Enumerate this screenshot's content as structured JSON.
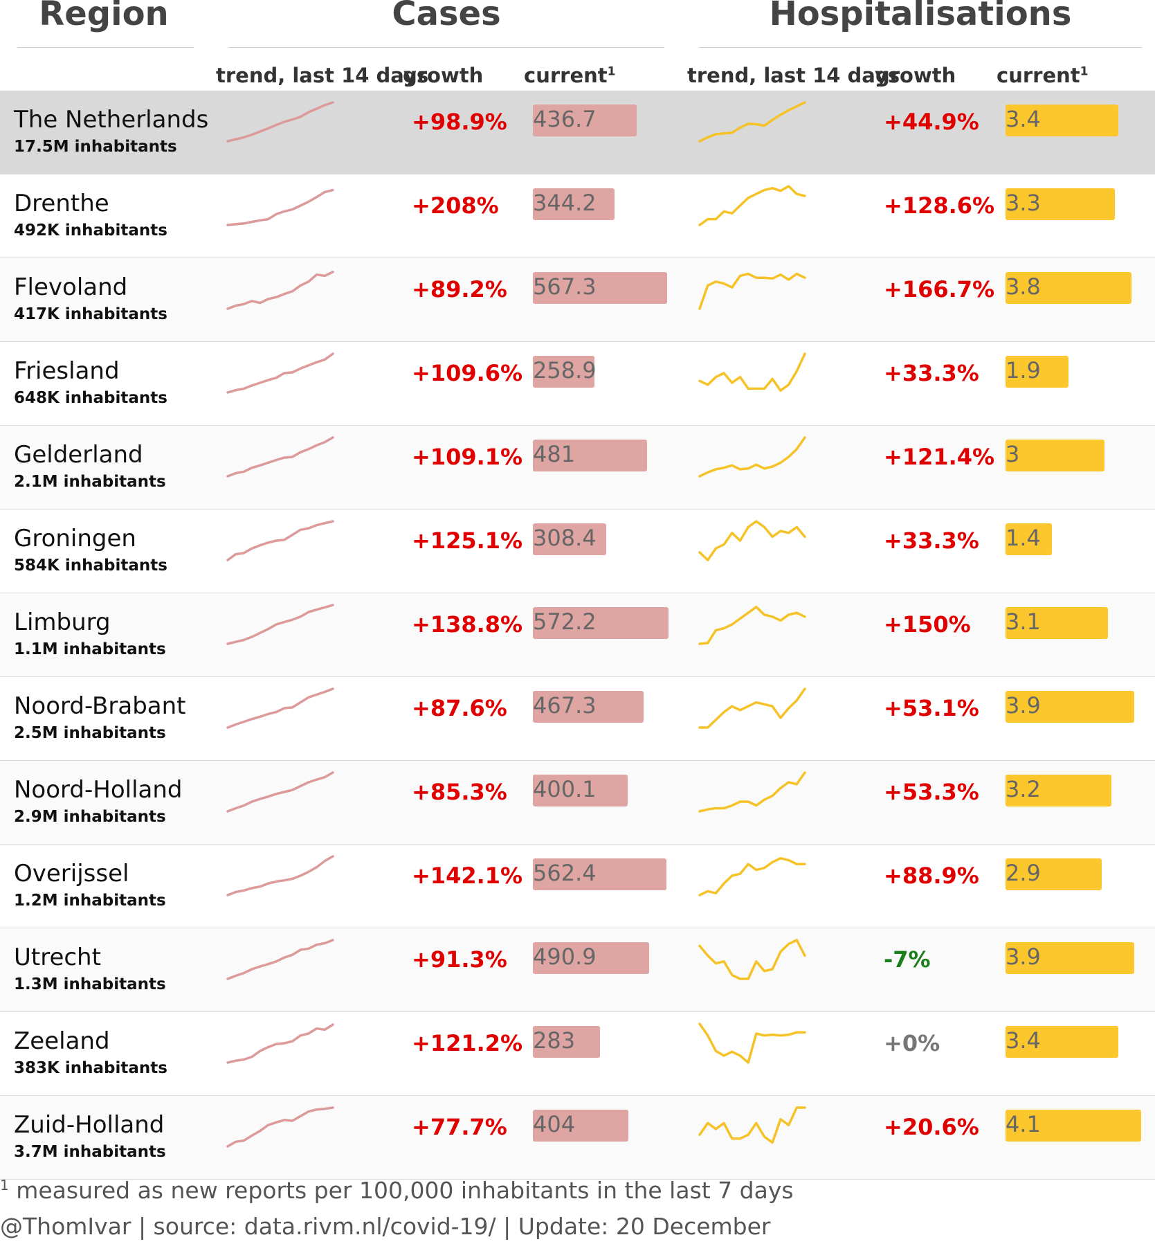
{
  "headers": {
    "region": "Region",
    "cases": "Cases",
    "hospitalisations": "Hospitalisations",
    "trend": "trend, last 14 days",
    "growth": "growth",
    "current": "current",
    "current_sup": "1"
  },
  "colors": {
    "cases_line": "#dc9a9a",
    "cases_bar": "#dea5a3",
    "hosp_line": "#f5c227",
    "hosp_bar": "#fcc72d",
    "positive": "#e00000",
    "negative": "#1a7f1a",
    "neutral": "#777777"
  },
  "chart_data": {
    "type": "table",
    "max_cases": 572.2,
    "max_hosp": 4.1,
    "rows": [
      {
        "name": "The Netherlands",
        "population": "17.5M inhabitants",
        "cases_growth": "+98.9%",
        "cases_current": 436.7,
        "cases_current_label": "436.7",
        "hosp_growth": "+44.9%",
        "hosp_current": 3.4,
        "hosp_current_label": "3.4",
        "growth_sign": "pos",
        "cases_trend": [
          0,
          5,
          10,
          17,
          25,
          33,
          42,
          50,
          56,
          63,
          75,
          84,
          93,
          100
        ],
        "hosp_trend": [
          0,
          10,
          18,
          20,
          22,
          35,
          45,
          44,
          40,
          55,
          68,
          80,
          90,
          100
        ]
      },
      {
        "name": "Drenthe",
        "population": "492K inhabitants",
        "cases_growth": "+208%",
        "cases_current": 344.2,
        "cases_current_label": "344.2",
        "hosp_growth": "+128.6%",
        "hosp_current": 3.3,
        "hosp_current_label": "3.3",
        "growth_sign": "pos",
        "cases_trend": [
          0,
          2,
          4,
          8,
          12,
          15,
          28,
          35,
          40,
          50,
          60,
          72,
          85,
          90
        ],
        "hosp_trend": [
          0,
          15,
          15,
          35,
          30,
          50,
          70,
          80,
          90,
          95,
          88,
          100,
          80,
          75
        ]
      },
      {
        "name": "Flevoland",
        "population": "417K inhabitants",
        "cases_growth": "+89.2%",
        "cases_current": 567.3,
        "cases_current_label": "567.3",
        "hosp_growth": "+166.7%",
        "hosp_current": 3.8,
        "hosp_current_label": "3.8",
        "growth_sign": "pos",
        "cases_trend": [
          0,
          8,
          12,
          20,
          15,
          25,
          30,
          38,
          45,
          60,
          70,
          88,
          85,
          95
        ],
        "hosp_trend": [
          0,
          60,
          70,
          65,
          55,
          85,
          90,
          80,
          80,
          78,
          88,
          75,
          90,
          80
        ]
      },
      {
        "name": "Friesland",
        "population": "648K inhabitants",
        "cases_growth": "+109.6%",
        "cases_current": 258.9,
        "cases_current_label": "258.9",
        "hosp_growth": "+33.3%",
        "hosp_current": 1.9,
        "hosp_current_label": "1.9",
        "growth_sign": "pos",
        "cases_trend": [
          0,
          6,
          10,
          18,
          25,
          32,
          38,
          50,
          52,
          62,
          70,
          78,
          85,
          100
        ],
        "hosp_trend": [
          30,
          20,
          40,
          50,
          25,
          40,
          10,
          10,
          10,
          35,
          5,
          20,
          55,
          100
        ]
      },
      {
        "name": "Gelderland",
        "population": "2.1M inhabitants",
        "cases_growth": "+109.1%",
        "cases_current": 481,
        "cases_current_label": "481",
        "hosp_growth": "+121.4%",
        "hosp_current": 3,
        "hosp_current_label": "3",
        "growth_sign": "pos",
        "cases_trend": [
          0,
          8,
          12,
          22,
          28,
          35,
          42,
          48,
          50,
          62,
          70,
          80,
          88,
          100
        ],
        "hosp_trend": [
          0,
          10,
          18,
          22,
          28,
          18,
          20,
          30,
          20,
          25,
          35,
          50,
          70,
          100
        ]
      },
      {
        "name": "Groningen",
        "population": "584K inhabitants",
        "cases_growth": "+125.1%",
        "cases_current": 308.4,
        "cases_current_label": "308.4",
        "hosp_growth": "+33.3%",
        "hosp_current": 1.4,
        "hosp_current_label": "1.4",
        "growth_sign": "pos",
        "cases_trend": [
          0,
          15,
          18,
          30,
          38,
          45,
          50,
          52,
          65,
          78,
          82,
          90,
          95,
          100
        ],
        "hosp_trend": [
          20,
          0,
          30,
          40,
          70,
          50,
          85,
          100,
          85,
          60,
          75,
          70,
          85,
          60
        ]
      },
      {
        "name": "Limburg",
        "population": "1.1M inhabitants",
        "cases_growth": "+138.8%",
        "cases_current": 572.2,
        "cases_current_label": "572.2",
        "hosp_growth": "+150%",
        "hosp_current": 3.1,
        "hosp_current_label": "3.1",
        "growth_sign": "pos",
        "cases_trend": [
          0,
          5,
          10,
          18,
          28,
          38,
          50,
          56,
          62,
          70,
          82,
          88,
          94,
          100
        ],
        "hosp_trend": [
          0,
          2,
          35,
          40,
          50,
          65,
          80,
          95,
          75,
          70,
          60,
          75,
          80,
          70
        ]
      },
      {
        "name": "Noord-Brabant",
        "population": "2.5M inhabitants",
        "cases_growth": "+87.6%",
        "cases_current": 467.3,
        "cases_current_label": "467.3",
        "hosp_growth": "+53.1%",
        "hosp_current": 3.9,
        "hosp_current_label": "3.9",
        "growth_sign": "pos",
        "cases_trend": [
          0,
          8,
          15,
          22,
          28,
          35,
          40,
          50,
          52,
          65,
          78,
          85,
          92,
          100
        ],
        "hosp_trend": [
          0,
          0,
          20,
          40,
          55,
          45,
          55,
          65,
          60,
          55,
          25,
          50,
          70,
          100
        ]
      },
      {
        "name": "Noord-Holland",
        "population": "2.9M inhabitants",
        "cases_growth": "+85.3%",
        "cases_current": 400.1,
        "cases_current_label": "400.1",
        "hosp_growth": "+53.3%",
        "hosp_current": 3.2,
        "hosp_current_label": "3.2",
        "growth_sign": "pos",
        "cases_trend": [
          0,
          8,
          15,
          25,
          32,
          38,
          45,
          50,
          55,
          65,
          75,
          82,
          88,
          100
        ],
        "hosp_trend": [
          0,
          5,
          8,
          8,
          15,
          25,
          25,
          15,
          30,
          40,
          60,
          75,
          70,
          100
        ]
      },
      {
        "name": "Overijssel",
        "population": "1.2M inhabitants",
        "cases_growth": "+142.1%",
        "cases_current": 562.4,
        "cases_current_label": "562.4",
        "hosp_growth": "+88.9%",
        "hosp_current": 2.9,
        "hosp_current_label": "2.9",
        "growth_sign": "pos",
        "cases_trend": [
          0,
          8,
          12,
          18,
          22,
          30,
          35,
          38,
          42,
          50,
          60,
          72,
          88,
          100
        ],
        "hosp_trend": [
          0,
          10,
          5,
          30,
          50,
          55,
          80,
          65,
          70,
          85,
          95,
          90,
          80,
          80
        ]
      },
      {
        "name": "Utrecht",
        "population": "1.3M inhabitants",
        "cases_growth": "+91.3%",
        "cases_current": 490.9,
        "cases_current_label": "490.9",
        "hosp_growth": "-7%",
        "hosp_current": 3.9,
        "hosp_current_label": "3.9",
        "growth_sign": "neg",
        "cases_trend": [
          0,
          8,
          15,
          25,
          32,
          38,
          45,
          55,
          62,
          75,
          78,
          88,
          92,
          100
        ],
        "hosp_trend": [
          85,
          60,
          40,
          45,
          10,
          0,
          0,
          45,
          20,
          25,
          70,
          90,
          100,
          60
        ]
      },
      {
        "name": "Zeeland",
        "population": "383K inhabitants",
        "cases_growth": "+121.2%",
        "cases_current": 283,
        "cases_current_label": "283",
        "hosp_growth": "+0%",
        "hosp_current": 3.4,
        "hosp_current_label": "3.4",
        "growth_sign": "zero",
        "cases_trend": [
          0,
          5,
          8,
          15,
          30,
          40,
          48,
          50,
          55,
          70,
          75,
          88,
          85,
          98
        ],
        "hosp_trend": [
          100,
          70,
          30,
          18,
          28,
          18,
          0,
          75,
          70,
          72,
          70,
          72,
          78,
          78
        ]
      },
      {
        "name": "Zuid-Holland",
        "population": "3.7M inhabitants",
        "cases_growth": "+77.7%",
        "cases_current": 404,
        "cases_current_label": "404",
        "hosp_growth": "+20.6%",
        "hosp_current": 4.1,
        "hosp_current_label": "4.1",
        "growth_sign": "pos",
        "cases_trend": [
          0,
          12,
          15,
          28,
          40,
          55,
          62,
          68,
          66,
          78,
          90,
          95,
          97,
          100
        ],
        "hosp_trend": [
          30,
          60,
          45,
          60,
          20,
          20,
          30,
          60,
          25,
          10,
          70,
          55,
          100,
          100
        ]
      }
    ]
  },
  "footnote": {
    "sup": "1",
    "text": " measured as new reports per 100,000 inhabitants in the last 7 days"
  },
  "credit": "@ThomIvar | source: data.rivm.nl/covid-19/ | Update: 20 December"
}
